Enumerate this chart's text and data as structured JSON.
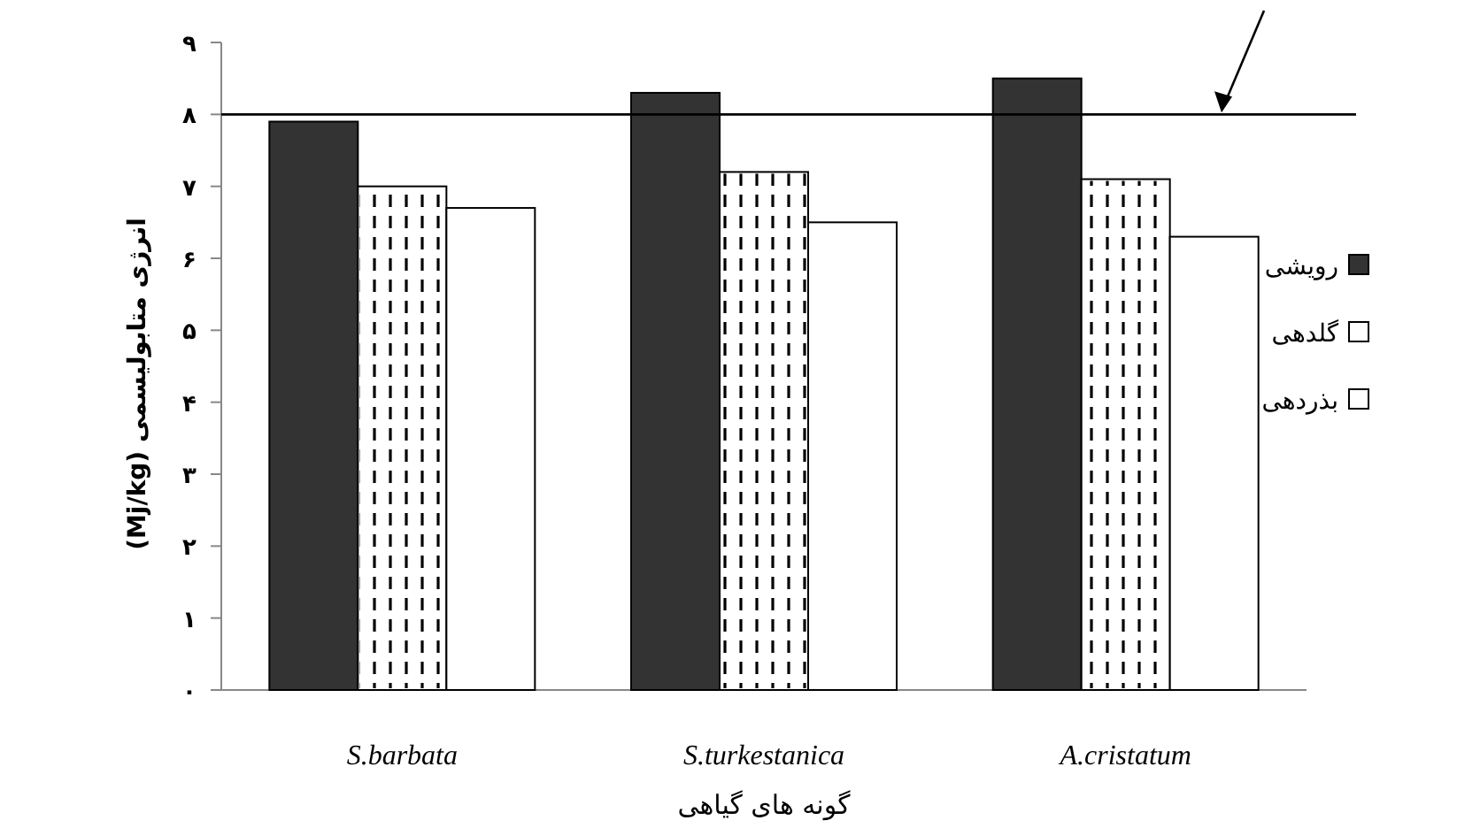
{
  "chart_data": {
    "type": "bar",
    "xlabel": "گونه های گیاهی",
    "ylabel": "انرژی متابولیسمی (Mj/kg)",
    "categories": [
      "S.barbata",
      "S.turkestanica",
      "A.cristatum"
    ],
    "series": [
      {
        "name": "رویشی",
        "color": "#333333",
        "values": [
          7.9,
          8.3,
          8.5
        ]
      },
      {
        "name": "گلدهی",
        "color": "#ffffff",
        "values": [
          7.0,
          7.2,
          7.1
        ]
      },
      {
        "name": "بذردهی",
        "color": "#ffffff",
        "values": [
          6.7,
          6.5,
          6.3
        ]
      }
    ],
    "ylim": [
      0,
      9
    ],
    "yticks": [
      {
        "value": 0,
        "label": "۰"
      },
      {
        "value": 1,
        "label": "۱"
      },
      {
        "value": 2,
        "label": "۲"
      },
      {
        "value": 3,
        "label": "۳"
      },
      {
        "value": 4,
        "label": "۴"
      },
      {
        "value": 5,
        "label": "۵"
      },
      {
        "value": 6,
        "label": "۶"
      },
      {
        "value": 7,
        "label": "۷"
      },
      {
        "value": 8,
        "label": "۸"
      },
      {
        "value": 9,
        "label": "۹"
      }
    ],
    "ref_lines": [
      {
        "axis": "y",
        "value": 8,
        "color": "#000000"
      }
    ],
    "legend": "right"
  }
}
